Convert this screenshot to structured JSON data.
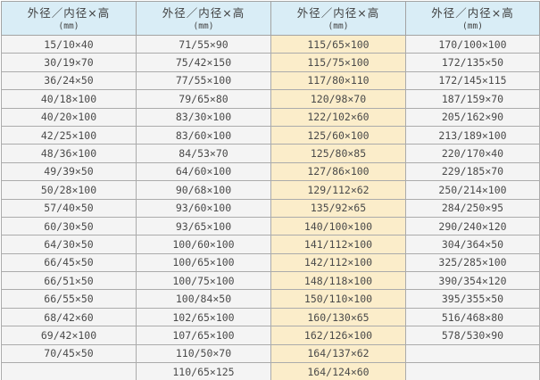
{
  "table": {
    "header_label": "外径／内径×高",
    "unit_label": "(mm)",
    "columns": [
      {
        "highlight": false,
        "values": [
          "15/10×40",
          "30/19×70",
          "36/24×50",
          "40/18×100",
          "40/20×100",
          "42/25×100",
          "48/36×100",
          "49/39×50",
          "50/28×100",
          "57/40×50",
          "60/30×50",
          "64/30×50",
          "66/45×50",
          "66/51×50",
          "66/55×50",
          "68/42×60",
          "69/42×100",
          "70/45×50",
          ""
        ]
      },
      {
        "highlight": false,
        "values": [
          "71/55×90",
          "75/42×150",
          "77/55×100",
          "79/65×80",
          "83/30×100",
          "83/60×100",
          "84/53×70",
          "64/60×100",
          "90/68×100",
          "93/60×100",
          "93/65×100",
          "100/60×100",
          "100/65×100",
          "100/75×100",
          "100/84×50",
          "102/65×100",
          "107/65×100",
          "110/50×70",
          "110/65×125"
        ]
      },
      {
        "highlight": true,
        "values": [
          "115/65×100",
          "115/75×100",
          "117/80×110",
          "120/98×70",
          "122/102×60",
          "125/60×100",
          "125/80×85",
          "127/86×100",
          "129/112×62",
          "135/92×65",
          "140/100×100",
          "141/112×100",
          "142/112×100",
          "148/118×100",
          "150/110×100",
          "160/130×65",
          "162/126×100",
          "164/137×62",
          "164/124×60"
        ]
      },
      {
        "highlight": false,
        "values": [
          "170/100×100",
          "172/135×50",
          "172/145×115",
          "187/159×70",
          "205/162×90",
          "213/189×100",
          "220/170×40",
          "229/185×70",
          "250/214×100",
          "284/250×95",
          "290/240×120",
          "304/364×50",
          "325/285×100",
          "390/354×120",
          "395/355×50",
          "516/468×80",
          "578/530×90",
          "",
          ""
        ]
      }
    ]
  },
  "colors": {
    "header_bg": "#d9edf6",
    "cell_bg": "#f4f4f4",
    "highlight_bg": "#fbedca",
    "grid_border": "#a3a3a3",
    "text": "#4a4a4a"
  }
}
